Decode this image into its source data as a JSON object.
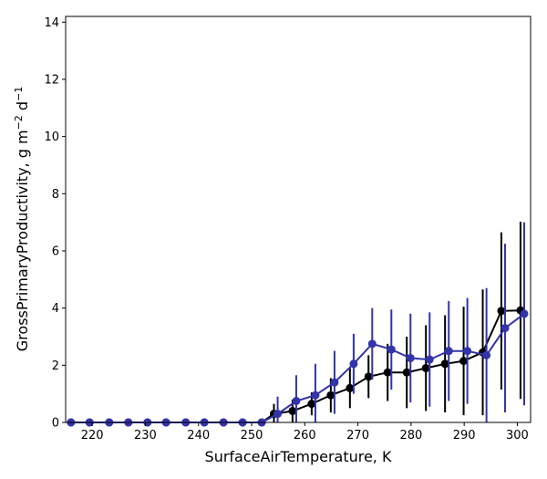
{
  "chart_data": {
    "type": "line",
    "xlabel": "SurfaceAirTemperature,  K",
    "ylabel_text": "GrossPrimaryProductivity,  g m",
    "ylabel_sup1": "−2",
    "ylabel_mid": " d",
    "ylabel_sup2": "−1",
    "xlim": [
      215,
      302.5
    ],
    "ylim": [
      0,
      14.2
    ],
    "xticks": [
      220,
      230,
      240,
      250,
      260,
      270,
      280,
      290,
      300
    ],
    "yticks": [
      0,
      2,
      4,
      6,
      8,
      10,
      12,
      14
    ],
    "grid": false,
    "series": [
      {
        "color": "#000000",
        "x": [
          216.0,
          219.5,
          223.2,
          226.8,
          230.4,
          233.9,
          237.6,
          241.1,
          244.7,
          248.3,
          251.9,
          254.2,
          257.7,
          261.3,
          264.9,
          268.5,
          272.0,
          275.6,
          279.2,
          282.8,
          286.4,
          289.9,
          293.5,
          297.0,
          300.6
        ],
        "y": [
          0,
          0,
          0,
          0,
          0,
          0,
          0,
          0,
          0,
          0,
          0,
          0.3,
          0.4,
          0.65,
          0.95,
          1.2,
          1.6,
          1.75,
          1.75,
          1.9,
          2.05,
          2.15,
          2.45,
          3.9,
          3.92
        ],
        "err": [
          0,
          0,
          0,
          0,
          0,
          0,
          0,
          0,
          0,
          0,
          0,
          0.35,
          0.4,
          0.4,
          0.6,
          0.7,
          0.75,
          1.0,
          1.25,
          1.5,
          1.7,
          1.9,
          2.2,
          2.75,
          3.1
        ]
      },
      {
        "color": "#3333aa",
        "x": [
          216.0,
          219.5,
          223.2,
          226.8,
          230.4,
          233.9,
          237.6,
          241.1,
          244.7,
          248.3,
          251.9,
          254.9,
          258.4,
          262.0,
          265.6,
          269.2,
          272.7,
          276.3,
          279.9,
          283.5,
          287.1,
          290.6,
          294.2,
          297.7,
          301.3
        ],
        "y": [
          0,
          0,
          0,
          0,
          0,
          0,
          0,
          0,
          0,
          0,
          0,
          0.3,
          0.75,
          0.95,
          1.4,
          2.05,
          2.75,
          2.55,
          2.25,
          2.2,
          2.5,
          2.5,
          2.35,
          3.3,
          3.8
        ],
        "err": [
          0,
          0,
          0,
          0,
          0,
          0,
          0,
          0,
          0,
          0,
          0,
          0.6,
          0.9,
          1.1,
          1.1,
          1.05,
          1.25,
          1.4,
          1.55,
          1.65,
          1.75,
          1.85,
          2.35,
          2.95,
          3.2
        ]
      }
    ]
  }
}
